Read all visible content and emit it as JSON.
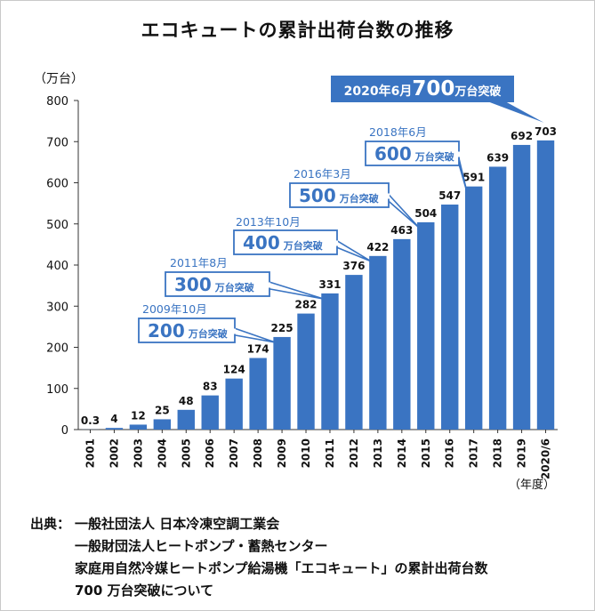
{
  "chart_data": {
    "type": "bar",
    "title": "エコキュートの累計出荷台数の推移",
    "ylabel": "（万台）",
    "xlabel": "（年度）",
    "ylim": [
      0,
      800
    ],
    "yticks": [
      0,
      100,
      200,
      300,
      400,
      500,
      600,
      700,
      800
    ],
    "grid": false,
    "bar_color": "#3a74c2",
    "categories": [
      "2001",
      "2002",
      "2003",
      "2004",
      "2005",
      "2006",
      "2007",
      "2008",
      "2009",
      "2010",
      "2011",
      "2012",
      "2013",
      "2014",
      "2015",
      "2016",
      "2017",
      "2018",
      "2019",
      "2020/6"
    ],
    "values": [
      0.3,
      4,
      12,
      25,
      48,
      83,
      124,
      174,
      225,
      282,
      331,
      376,
      422,
      463,
      504,
      547,
      591,
      639,
      692,
      703
    ],
    "value_labels": [
      "0.3",
      "4",
      "12",
      "25",
      "48",
      "83",
      "124",
      "174",
      "225",
      "282",
      "331",
      "376",
      "422",
      "463",
      "504",
      "547",
      "591",
      "639",
      "692",
      "703"
    ],
    "annotations": [
      {
        "date": "2009年10月",
        "number": "200",
        "unit": "万台突破",
        "target": "2009"
      },
      {
        "date": "2011年8月",
        "number": "300",
        "unit": "万台突破",
        "target": "2011"
      },
      {
        "date": "2013年10月",
        "number": "400",
        "unit": "万台突破",
        "target": "2013"
      },
      {
        "date": "2016年3月",
        "number": "500",
        "unit": "万台突破",
        "target": "2015"
      },
      {
        "date": "2018年6月",
        "number": "600",
        "unit": "万台突破",
        "target": "2017"
      },
      {
        "prefix": "2020年6月",
        "number": "700",
        "unit": "万台突破",
        "target": "2020/6",
        "filled": true
      }
    ]
  },
  "source": {
    "label": "出典：",
    "lines": [
      "一般社団法人 日本冷凍空調工業会",
      "一般財団法人ヒートポンプ・蓄熱センター",
      "家庭用自然冷媒ヒートポンプ給湯機「エコキュート」の累計出荷台数",
      "700 万台突破について"
    ]
  }
}
